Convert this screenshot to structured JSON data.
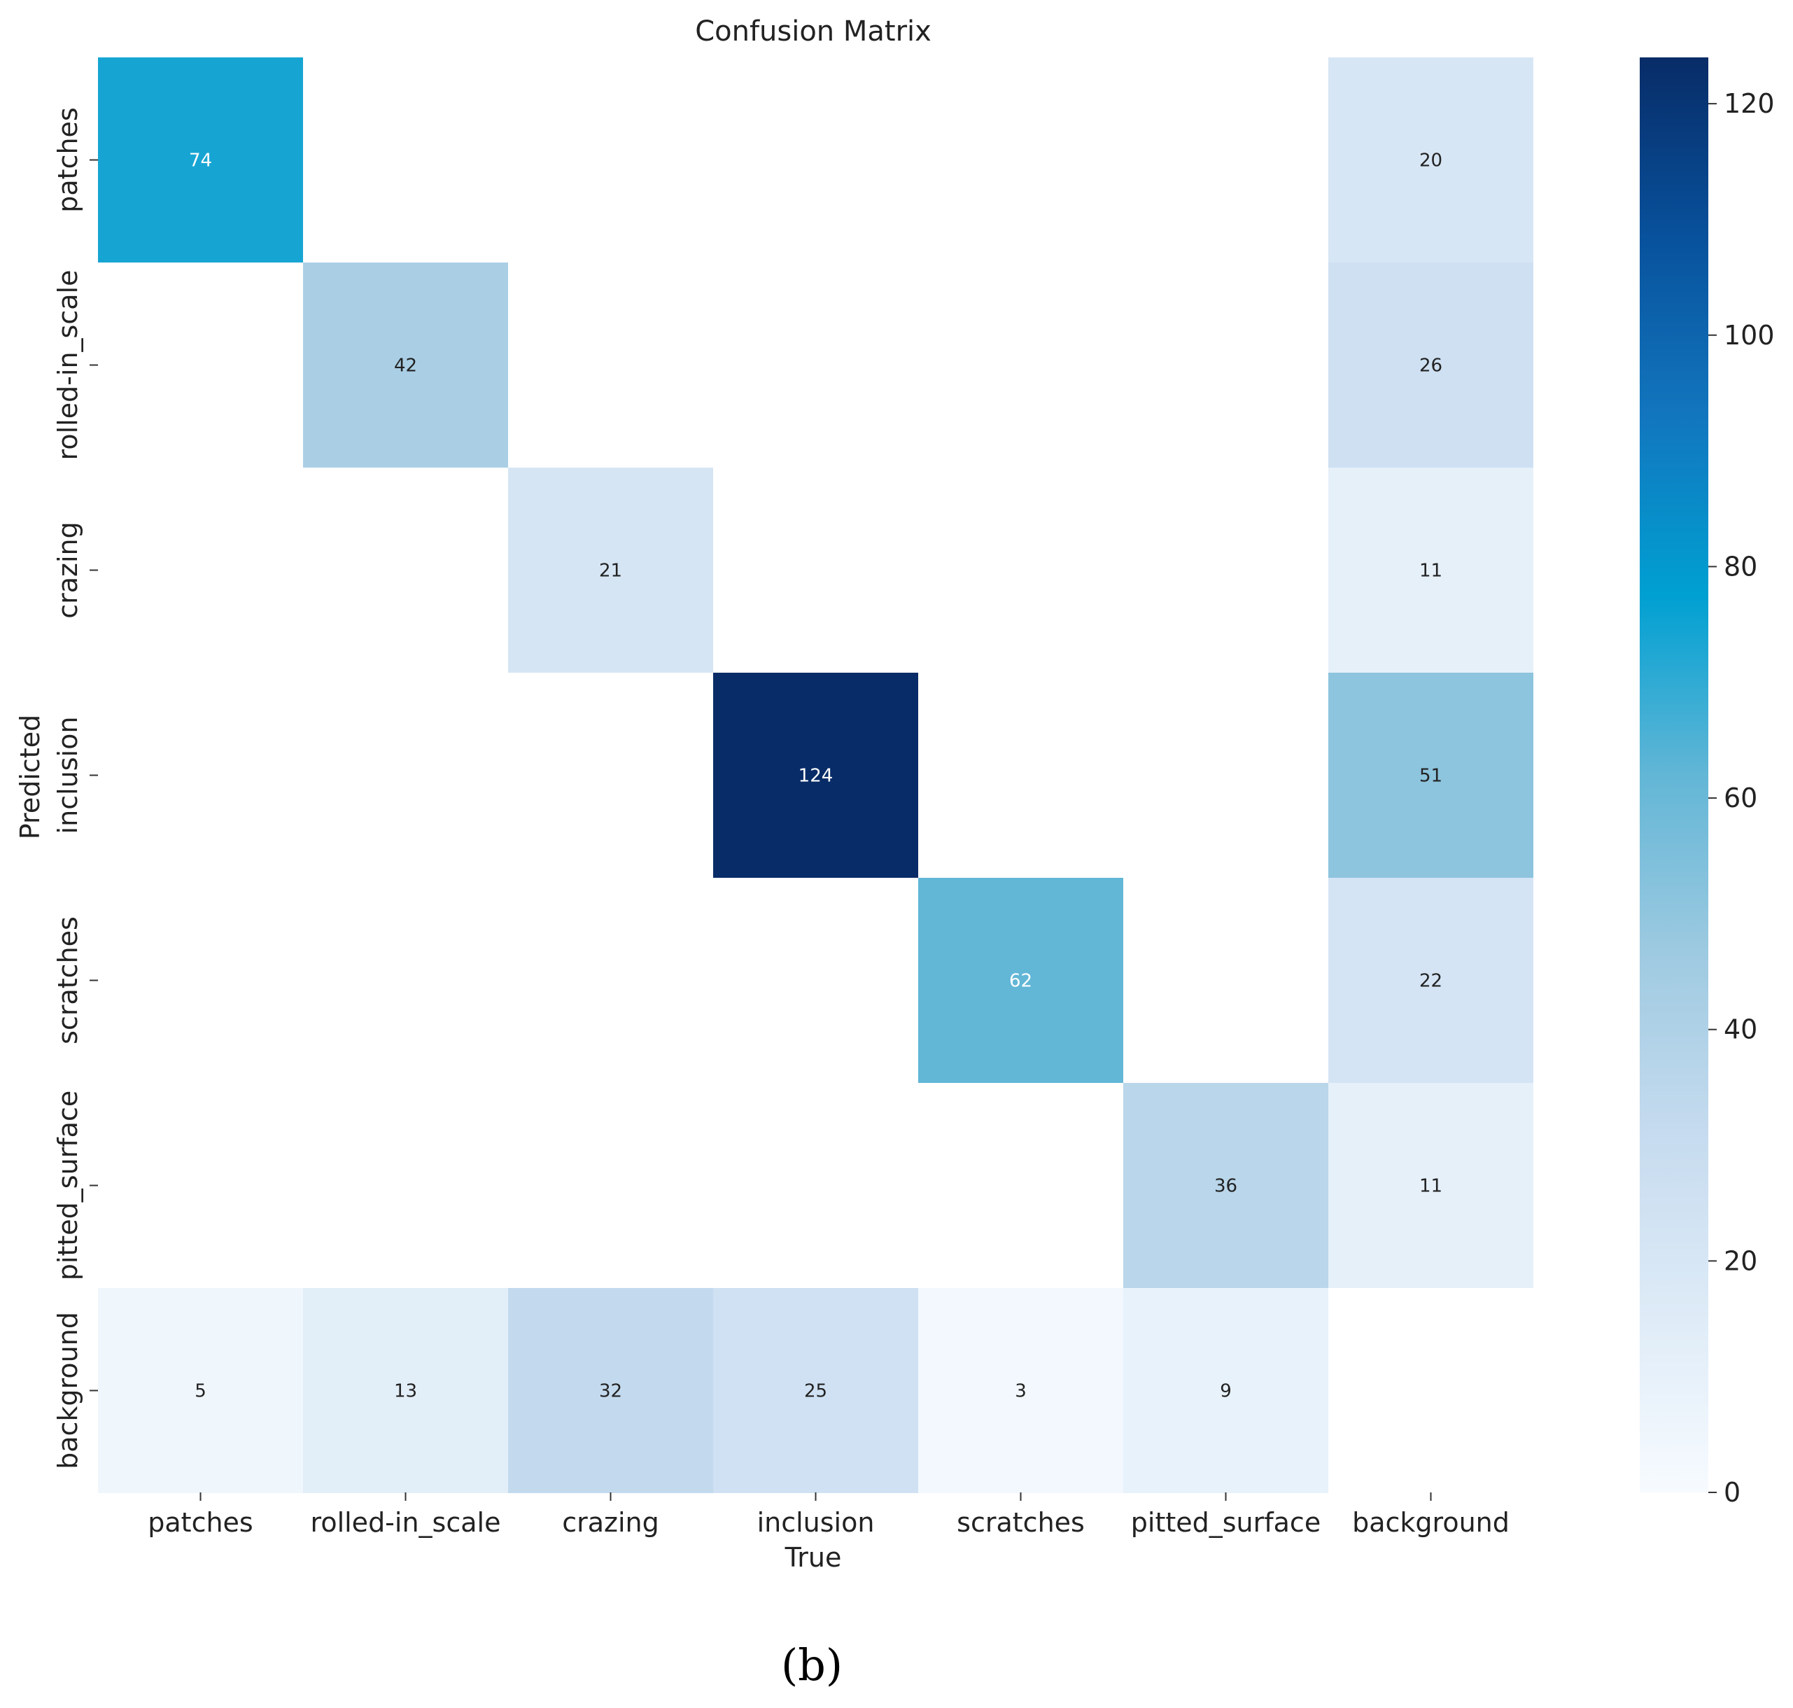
{
  "chart_data": {
    "type": "heatmap",
    "title": "Confusion Matrix",
    "xlabel": "True",
    "ylabel": "Predicted",
    "x_categories": [
      "patches",
      "rolled-in_scale",
      "crazing",
      "inclusion",
      "scratches",
      "pitted_surface",
      "background"
    ],
    "y_categories": [
      "patches",
      "rolled-in_scale",
      "crazing",
      "inclusion",
      "scratches",
      "pitted_surface",
      "background"
    ],
    "values": [
      [
        74,
        0,
        0,
        0,
        0,
        0,
        20
      ],
      [
        0,
        42,
        0,
        0,
        0,
        0,
        26
      ],
      [
        0,
        0,
        21,
        0,
        0,
        0,
        11
      ],
      [
        0,
        0,
        0,
        124,
        0,
        0,
        51
      ],
      [
        0,
        0,
        0,
        0,
        62,
        0,
        22
      ],
      [
        0,
        0,
        0,
        0,
        0,
        36,
        11
      ],
      [
        5,
        13,
        32,
        25,
        3,
        9,
        0
      ]
    ],
    "zero_cells_blank": true,
    "colormap": "Blues",
    "colorbar": {
      "range": [
        0,
        124
      ],
      "ticks": [
        0,
        20,
        40,
        60,
        80,
        100,
        120
      ],
      "placement": "right"
    },
    "grid": false
  },
  "caption": "(b)",
  "colors": {
    "text_dark": "#222222",
    "text_light": "#ffffff"
  }
}
